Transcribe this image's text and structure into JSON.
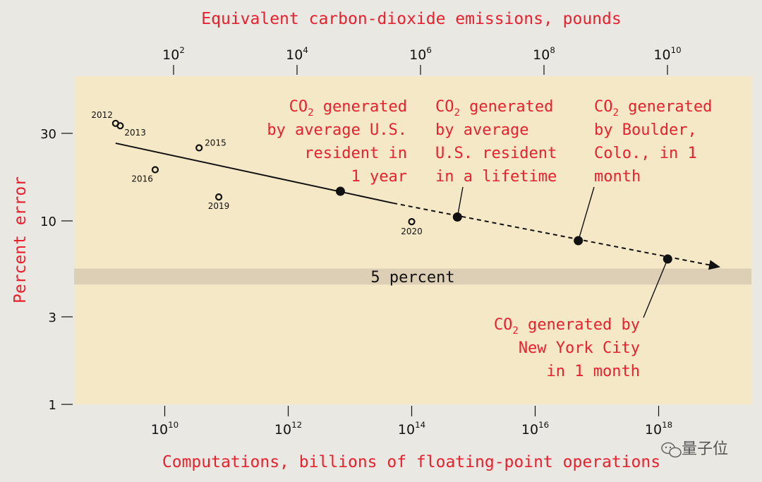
{
  "chart_data": {
    "type": "scatter",
    "title": "",
    "top_axis": {
      "label": "Equivalent carbon-dioxide emissions, pounds",
      "ticks": [
        {
          "base": "10",
          "exp": "2",
          "value": 100
        },
        {
          "base": "10",
          "exp": "4",
          "value": 10000
        },
        {
          "base": "10",
          "exp": "6",
          "value": 1000000
        },
        {
          "base": "10",
          "exp": "8",
          "value": 100000000
        },
        {
          "base": "10",
          "exp": "10",
          "value": 10000000000
        }
      ],
      "scale": "log"
    },
    "x_axis": {
      "label": "Computations, billions of floating-point operations",
      "scale": "log",
      "ticks": [
        {
          "base": "10",
          "exp": "10",
          "value": 10000000000.0
        },
        {
          "base": "10",
          "exp": "12",
          "value": 1000000000000.0
        },
        {
          "base": "10",
          "exp": "14",
          "value": 100000000000000.0
        },
        {
          "base": "10",
          "exp": "16",
          "value": 1e+16
        },
        {
          "base": "10",
          "exp": "18",
          "value": 1e+18
        }
      ]
    },
    "y_axis": {
      "label": "Percent error",
      "scale": "log",
      "range": [
        1,
        50
      ],
      "ticks": [
        {
          "label": "1",
          "value": 1
        },
        {
          "label": "3",
          "value": 3
        },
        {
          "label": "10",
          "value": 10
        },
        {
          "label": "30",
          "value": 30
        }
      ]
    },
    "observed": [
      {
        "label": "2012",
        "x": 1600000000.0,
        "y": 34
      },
      {
        "label": "2013",
        "x": 1900000000.0,
        "y": 33
      },
      {
        "label": "2015",
        "x": 36000000000.0,
        "y": 25
      },
      {
        "label": "2016",
        "x": 7000000000.0,
        "y": 19
      },
      {
        "label": "2019",
        "x": 75000000000.0,
        "y": 13.5
      },
      {
        "label": "2020",
        "x": 100000000000000.0,
        "y": 9.9
      }
    ],
    "trend": {
      "solid": [
        {
          "x": 1600000000.0,
          "y": 26.5
        },
        {
          "x": 50000000000000.0,
          "y": 12.5
        }
      ],
      "dashed": [
        {
          "x": 50000000000000.0,
          "y": 12.5
        },
        {
          "x": 1e+19,
          "y": 5.6
        }
      ]
    },
    "milestones": [
      {
        "id": "us-year",
        "x": 7000000000000.0,
        "y": 14.5,
        "lines": [
          "by average U.S.",
          "resident in",
          "1 year"
        ]
      },
      {
        "id": "us-lifetime",
        "x": 550000000000000.0,
        "y": 10.5,
        "lines": [
          "by average",
          "U.S. resident",
          "in a lifetime"
        ]
      },
      {
        "id": "boulder",
        "x": 5e+16,
        "y": 7.8,
        "lines": [
          "by Boulder,",
          "Colo., in 1",
          "month"
        ]
      },
      {
        "id": "nyc",
        "x": 1.4e+18,
        "y": 6.2,
        "lines": [
          "New York City",
          "in 1 month"
        ]
      }
    ],
    "co2_prefix": "CO",
    "co2_subscript": "2",
    "co2_suffix": " generated",
    "nyc_first_suffix": " generated by",
    "band": {
      "label": "5 percent",
      "from": 4.5,
      "to": 5.5
    },
    "colors": {
      "panel": "#f4e8c6",
      "band": "#ddcfb5",
      "background": "#eae8e2",
      "accent": "#e8212f",
      "ink": "#111111"
    }
  },
  "watermark": {
    "text": "量子位",
    "icon": "wechat-icon"
  }
}
